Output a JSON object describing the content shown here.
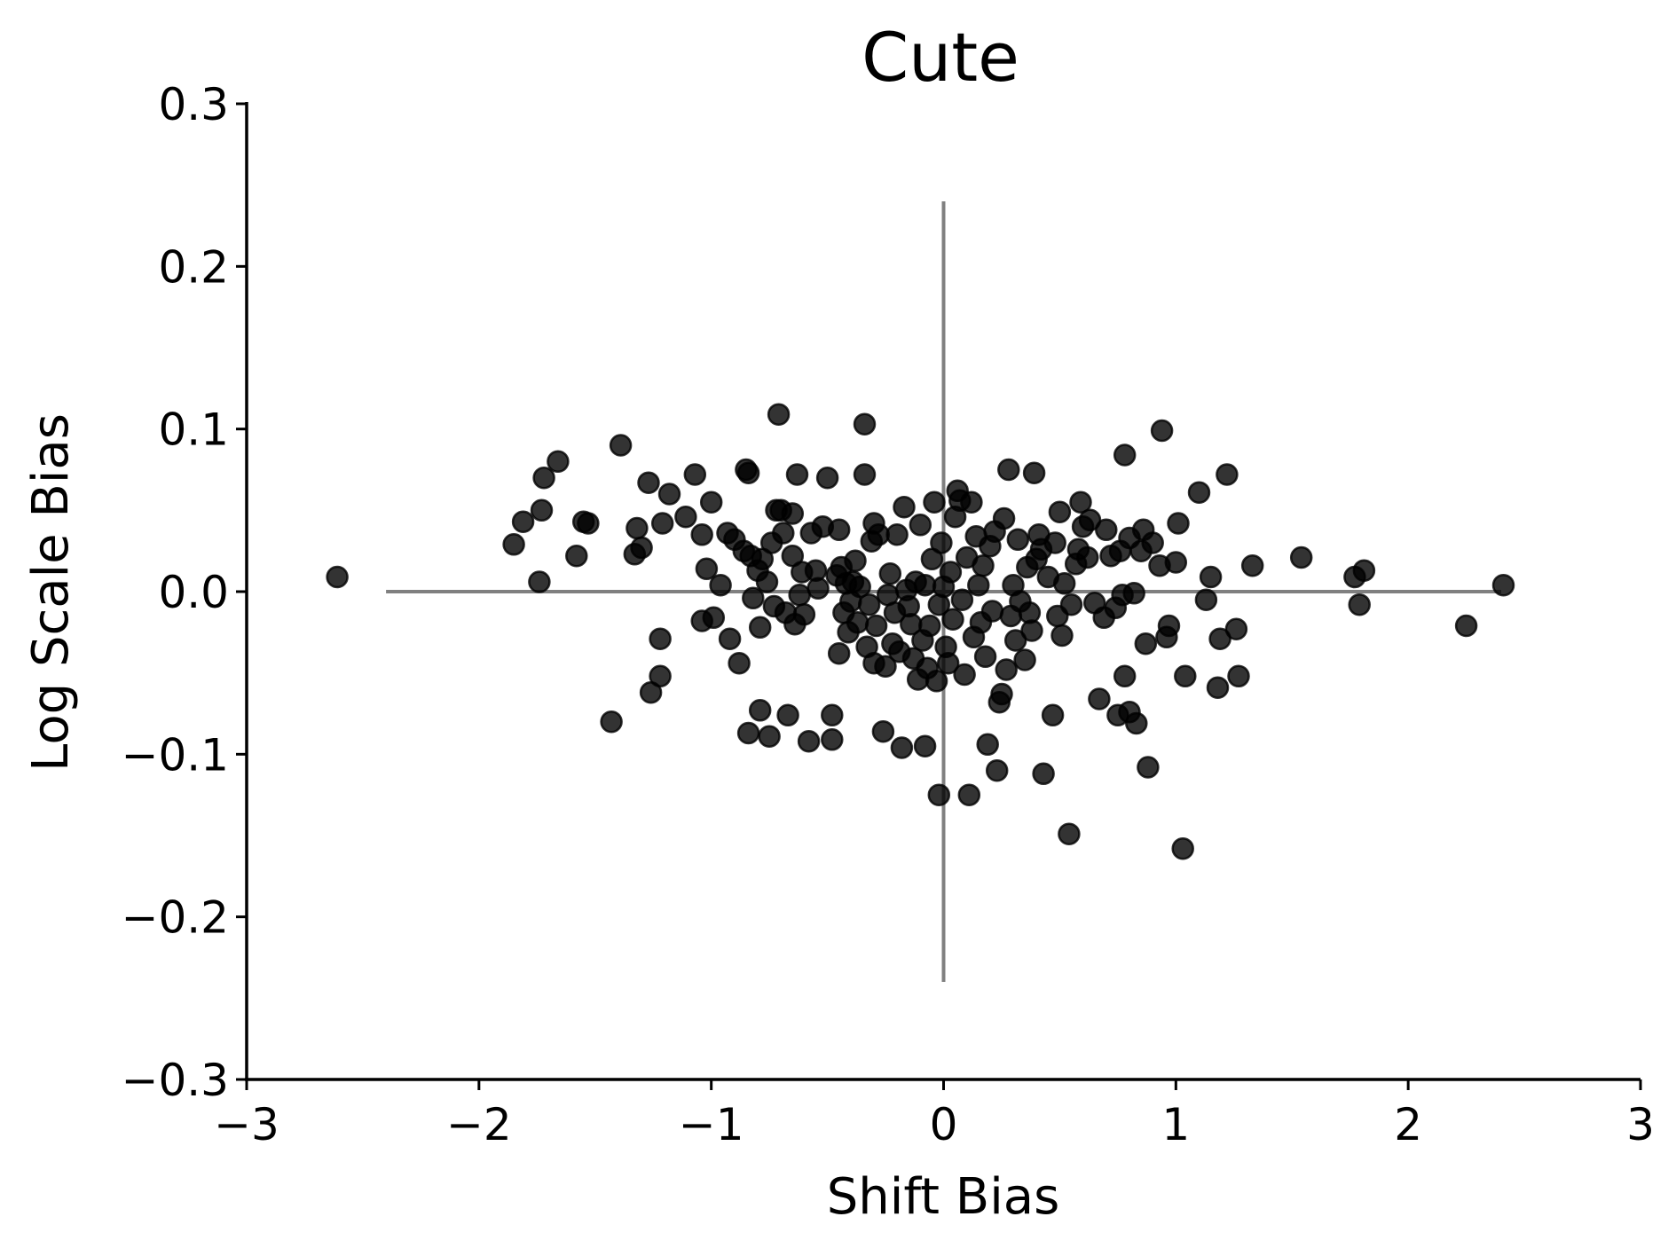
{
  "chart_data": {
    "type": "scatter",
    "title": "Cute",
    "xlabel": "Shift Bias",
    "ylabel": "Log Scale Bias",
    "xlim": [
      -3,
      3
    ],
    "ylim": [
      -0.3,
      0.3
    ],
    "xticks": [
      -3,
      -2,
      -1,
      0,
      1,
      2,
      3
    ],
    "xtick_labels": [
      "−3",
      "−2",
      "−1",
      "0",
      "1",
      "2",
      "3"
    ],
    "yticks": [
      -0.3,
      -0.2,
      -0.1,
      0.0,
      0.1,
      0.2,
      0.3
    ],
    "ytick_labels": [
      "−0.3",
      "−0.2",
      "−0.1",
      "0.0",
      "0.1",
      "0.2",
      "0.3"
    ],
    "grid": false,
    "legend": "none",
    "reference_lines": {
      "horizontal": {
        "y": 0,
        "x_range": [
          -2.4,
          2.4
        ]
      },
      "vertical": {
        "x": 0,
        "y_range": [
          -0.24,
          0.24
        ]
      }
    },
    "marker_color": "#000000",
    "marker_opacity": 0.8,
    "reference_line_color": "#808080",
    "points": [
      [
        -2.61,
        0.009
      ],
      [
        -1.85,
        0.029
      ],
      [
        -1.81,
        0.043
      ],
      [
        -1.74,
        0.006
      ],
      [
        -1.73,
        0.05
      ],
      [
        -1.72,
        0.07
      ],
      [
        -1.66,
        0.08
      ],
      [
        -1.58,
        0.022
      ],
      [
        -1.55,
        0.043
      ],
      [
        -1.53,
        0.042
      ],
      [
        -1.43,
        -0.08
      ],
      [
        -1.39,
        0.09
      ],
      [
        -1.33,
        0.023
      ],
      [
        -1.32,
        0.039
      ],
      [
        -1.3,
        0.027
      ],
      [
        -1.27,
        0.067
      ],
      [
        -1.26,
        -0.062
      ],
      [
        -1.22,
        -0.052
      ],
      [
        -1.22,
        -0.029
      ],
      [
        -1.21,
        0.042
      ],
      [
        -1.18,
        0.06
      ],
      [
        -1.11,
        0.046
      ],
      [
        -1.07,
        0.072
      ],
      [
        -1.04,
        0.035
      ],
      [
        -1.04,
        -0.018
      ],
      [
        -1.02,
        0.014
      ],
      [
        -1.0,
        0.055
      ],
      [
        -0.99,
        -0.016
      ],
      [
        -0.96,
        0.004
      ],
      [
        -0.93,
        0.036
      ],
      [
        -0.92,
        -0.029
      ],
      [
        -0.9,
        0.032
      ],
      [
        -0.88,
        -0.044
      ],
      [
        -0.86,
        0.025
      ],
      [
        -0.85,
        0.075
      ],
      [
        -0.84,
        0.073
      ],
      [
        -0.84,
        -0.087
      ],
      [
        -0.83,
        0.022
      ],
      [
        -0.82,
        -0.004
      ],
      [
        -0.8,
        0.013
      ],
      [
        -0.79,
        -0.073
      ],
      [
        -0.79,
        -0.022
      ],
      [
        -0.78,
        0.02
      ],
      [
        -0.76,
        0.006
      ],
      [
        -0.75,
        -0.089
      ],
      [
        -0.74,
        0.03
      ],
      [
        -0.73,
        -0.009
      ],
      [
        -0.72,
        0.05
      ],
      [
        -0.71,
        0.109
      ],
      [
        -0.7,
        0.05
      ],
      [
        -0.69,
        0.036
      ],
      [
        -0.68,
        -0.013
      ],
      [
        -0.67,
        -0.076
      ],
      [
        -0.65,
        0.048
      ],
      [
        -0.65,
        0.022
      ],
      [
        -0.64,
        -0.02
      ],
      [
        -0.63,
        0.072
      ],
      [
        -0.62,
        -0.002
      ],
      [
        -0.61,
        0.012
      ],
      [
        -0.6,
        -0.014
      ],
      [
        -0.58,
        -0.092
      ],
      [
        -0.57,
        0.036
      ],
      [
        -0.55,
        0.013
      ],
      [
        -0.54,
        0.002
      ],
      [
        -0.52,
        0.04
      ],
      [
        -0.5,
        0.07
      ],
      [
        -0.48,
        -0.076
      ],
      [
        -0.48,
        -0.091
      ],
      [
        -0.46,
        0.01
      ],
      [
        -0.45,
        0.038
      ],
      [
        -0.45,
        -0.038
      ],
      [
        -0.44,
        0.015
      ],
      [
        -0.43,
        -0.013
      ],
      [
        -0.42,
        0.005
      ],
      [
        -0.41,
        -0.025
      ],
      [
        -0.4,
        -0.006
      ],
      [
        -0.39,
        0.006
      ],
      [
        -0.38,
        0.019
      ],
      [
        -0.37,
        -0.019
      ],
      [
        -0.36,
        0.003
      ],
      [
        -0.34,
        0.103
      ],
      [
        -0.34,
        0.072
      ],
      [
        -0.33,
        -0.034
      ],
      [
        -0.32,
        -0.008
      ],
      [
        -0.31,
        0.031
      ],
      [
        -0.3,
        0.042
      ],
      [
        -0.3,
        -0.044
      ],
      [
        -0.29,
        -0.021
      ],
      [
        -0.28,
        0.035
      ],
      [
        -0.26,
        -0.086
      ],
      [
        -0.25,
        -0.046
      ],
      [
        -0.24,
        -0.002
      ],
      [
        -0.23,
        0.011
      ],
      [
        -0.22,
        -0.032
      ],
      [
        -0.21,
        -0.013
      ],
      [
        -0.2,
        0.035
      ],
      [
        -0.19,
        -0.037
      ],
      [
        -0.18,
        -0.096
      ],
      [
        -0.17,
        0.052
      ],
      [
        -0.16,
        0.001
      ],
      [
        -0.15,
        -0.009
      ],
      [
        -0.14,
        -0.02
      ],
      [
        -0.13,
        -0.041
      ],
      [
        -0.12,
        0.006
      ],
      [
        -0.11,
        -0.054
      ],
      [
        -0.1,
        0.041
      ],
      [
        -0.09,
        -0.03
      ],
      [
        -0.08,
        -0.095
      ],
      [
        -0.08,
        0.004
      ],
      [
        -0.07,
        -0.047
      ],
      [
        -0.06,
        -0.021
      ],
      [
        -0.05,
        0.02
      ],
      [
        -0.04,
        0.055
      ],
      [
        -0.03,
        -0.055
      ],
      [
        -0.02,
        -0.125
      ],
      [
        -0.02,
        -0.008
      ],
      [
        -0.01,
        0.03
      ],
      [
        0.0,
        0.003
      ],
      [
        0.01,
        -0.034
      ],
      [
        0.02,
        -0.044
      ],
      [
        0.03,
        0.012
      ],
      [
        0.04,
        -0.017
      ],
      [
        0.05,
        0.046
      ],
      [
        0.06,
        0.062
      ],
      [
        0.07,
        0.056
      ],
      [
        0.08,
        -0.005
      ],
      [
        0.09,
        -0.051
      ],
      [
        0.1,
        0.021
      ],
      [
        0.11,
        -0.125
      ],
      [
        0.12,
        0.055
      ],
      [
        0.13,
        -0.028
      ],
      [
        0.14,
        0.034
      ],
      [
        0.15,
        0.004
      ],
      [
        0.16,
        -0.019
      ],
      [
        0.17,
        0.016
      ],
      [
        0.18,
        -0.04
      ],
      [
        0.19,
        -0.094
      ],
      [
        0.2,
        0.028
      ],
      [
        0.21,
        -0.012
      ],
      [
        0.22,
        0.037
      ],
      [
        0.23,
        -0.11
      ],
      [
        0.24,
        -0.068
      ],
      [
        0.25,
        -0.063
      ],
      [
        0.26,
        0.045
      ],
      [
        0.27,
        -0.048
      ],
      [
        0.28,
        0.075
      ],
      [
        0.29,
        -0.015
      ],
      [
        0.3,
        0.004
      ],
      [
        0.31,
        -0.03
      ],
      [
        0.32,
        0.032
      ],
      [
        0.33,
        -0.006
      ],
      [
        0.35,
        -0.042
      ],
      [
        0.36,
        0.015
      ],
      [
        0.37,
        -0.013
      ],
      [
        0.38,
        -0.024
      ],
      [
        0.39,
        0.073
      ],
      [
        0.4,
        0.02
      ],
      [
        0.41,
        0.035
      ],
      [
        0.42,
        0.026
      ],
      [
        0.43,
        -0.112
      ],
      [
        0.45,
        0.009
      ],
      [
        0.47,
        -0.076
      ],
      [
        0.48,
        0.03
      ],
      [
        0.49,
        -0.015
      ],
      [
        0.5,
        0.049
      ],
      [
        0.51,
        -0.027
      ],
      [
        0.52,
        0.005
      ],
      [
        0.54,
        -0.149
      ],
      [
        0.55,
        -0.008
      ],
      [
        0.57,
        0.017
      ],
      [
        0.58,
        0.026
      ],
      [
        0.59,
        0.055
      ],
      [
        0.6,
        0.04
      ],
      [
        0.62,
        0.021
      ],
      [
        0.63,
        0.044
      ],
      [
        0.65,
        -0.007
      ],
      [
        0.67,
        -0.066
      ],
      [
        0.69,
        -0.016
      ],
      [
        0.7,
        0.038
      ],
      [
        0.72,
        0.022
      ],
      [
        0.74,
        -0.01
      ],
      [
        0.75,
        -0.076
      ],
      [
        0.76,
        0.025
      ],
      [
        0.77,
        -0.002
      ],
      [
        0.78,
        0.084
      ],
      [
        0.78,
        -0.052
      ],
      [
        0.8,
        0.033
      ],
      [
        0.8,
        -0.074
      ],
      [
        0.82,
        -0.001
      ],
      [
        0.83,
        -0.081
      ],
      [
        0.85,
        0.025
      ],
      [
        0.86,
        0.038
      ],
      [
        0.87,
        -0.032
      ],
      [
        0.88,
        -0.108
      ],
      [
        0.9,
        0.03
      ],
      [
        0.93,
        0.016
      ],
      [
        0.94,
        0.099
      ],
      [
        0.96,
        -0.028
      ],
      [
        0.97,
        -0.021
      ],
      [
        1.0,
        0.018
      ],
      [
        1.01,
        0.042
      ],
      [
        1.03,
        -0.158
      ],
      [
        1.04,
        -0.052
      ],
      [
        1.1,
        0.061
      ],
      [
        1.13,
        -0.005
      ],
      [
        1.15,
        0.009
      ],
      [
        1.18,
        -0.059
      ],
      [
        1.19,
        -0.029
      ],
      [
        1.22,
        0.072
      ],
      [
        1.26,
        -0.023
      ],
      [
        1.27,
        -0.052
      ],
      [
        1.33,
        0.016
      ],
      [
        1.54,
        0.021
      ],
      [
        1.77,
        0.009
      ],
      [
        1.79,
        -0.008
      ],
      [
        1.81,
        0.013
      ],
      [
        2.25,
        -0.021
      ],
      [
        2.41,
        0.004
      ]
    ]
  }
}
